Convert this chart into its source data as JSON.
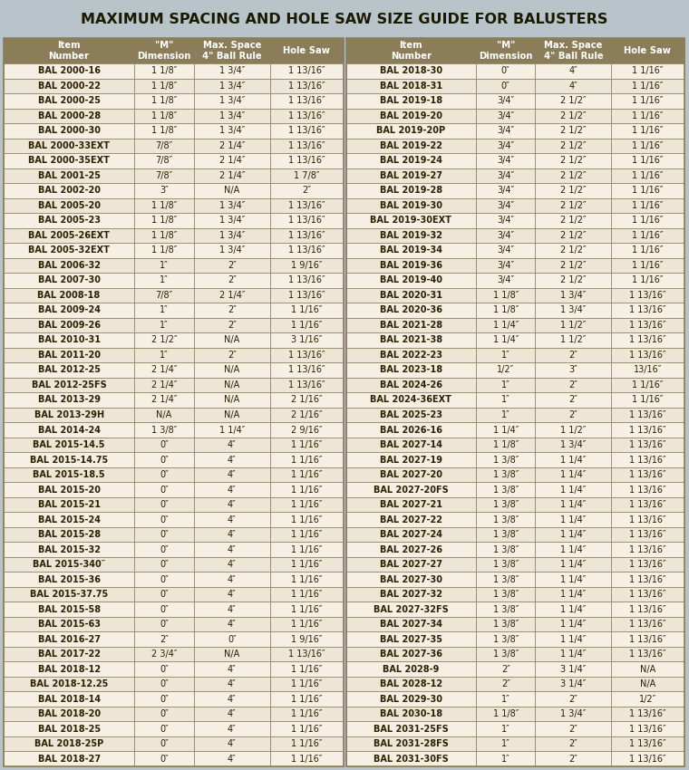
{
  "title": "MAXIMUM SPACING AND HOLE SAW SIZE GUIDE FOR BALUSTERS",
  "title_bg": "#B8C4CA",
  "header_bg": "#8B7D5A",
  "header_fg": "#FFFFFF",
  "odd_row_bg": "#F5F0E3",
  "even_row_bg": "#EDE6D6",
  "border_color": "#8B7D5A",
  "text_color": "#2C2000",
  "col_headers_left": [
    "Item\nNumber",
    "\"M\"\nDimension",
    "Max. Space\n4\" Ball Rule",
    "Hole Saw"
  ],
  "col_headers_right": [
    "Item\nNumber",
    "\"M\"\nDimension",
    "Max. Space\n4\" Ball Rule",
    "Hole Saw"
  ],
  "left_data": [
    [
      "BAL 2000-16",
      "1 1/8″",
      "1 3/4″",
      "1 13/16″"
    ],
    [
      "BAL 2000-22",
      "1 1/8″",
      "1 3/4″",
      "1 13/16″"
    ],
    [
      "BAL 2000-25",
      "1 1/8″",
      "1 3/4″",
      "1 13/16″"
    ],
    [
      "BAL 2000-28",
      "1 1/8″",
      "1 3/4″",
      "1 13/16″"
    ],
    [
      "BAL 2000-30",
      "1 1/8″",
      "1 3/4″",
      "1 13/16″"
    ],
    [
      "BAL 2000-33EXT",
      "7/8″",
      "2 1/4″",
      "1 13/16″"
    ],
    [
      "BAL 2000-35EXT",
      "7/8″",
      "2 1/4″",
      "1 13/16″"
    ],
    [
      "BAL 2001-25",
      "7/8″",
      "2 1/4″",
      "1 7/8″"
    ],
    [
      "BAL 2002-20",
      "3″",
      "N/A",
      "2″"
    ],
    [
      "BAL 2005-20",
      "1 1/8″",
      "1 3/4″",
      "1 13/16″"
    ],
    [
      "BAL 2005-23",
      "1 1/8″",
      "1 3/4″",
      "1 13/16″"
    ],
    [
      "BAL 2005-26EXT",
      "1 1/8″",
      "1 3/4″",
      "1 13/16″"
    ],
    [
      "BAL 2005-32EXT",
      "1 1/8″",
      "1 3/4″",
      "1 13/16″"
    ],
    [
      "BAL 2006-32",
      "1″",
      "2″",
      "1 9/16″"
    ],
    [
      "BAL 2007-30",
      "1″",
      "2″",
      "1 13/16″"
    ],
    [
      "BAL 2008-18",
      "7/8″",
      "2 1/4″",
      "1 13/16″"
    ],
    [
      "BAL 2009-24",
      "1″",
      "2″",
      "1 1/16″"
    ],
    [
      "BAL 2009-26",
      "1″",
      "2″",
      "1 1/16″"
    ],
    [
      "BAL 2010-31",
      "2 1/2″",
      "N/A",
      "3 1/16″"
    ],
    [
      "BAL 2011-20",
      "1″",
      "2″",
      "1 13/16″"
    ],
    [
      "BAL 2012-25",
      "2 1/4″",
      "N/A",
      "1 13/16″"
    ],
    [
      "BAL 2012-25FS",
      "2 1/4″",
      "N/A",
      "1 13/16″"
    ],
    [
      "BAL 2013-29",
      "2 1/4″",
      "N/A",
      "2 1/16″"
    ],
    [
      "BAL 2013-29H",
      "N/A",
      "N/A",
      "2 1/16″"
    ],
    [
      "BAL 2014-24",
      "1 3/8″",
      "1 1/4″",
      "2 9/16″"
    ],
    [
      "BAL 2015-14.5",
      "0″",
      "4″",
      "1 1/16″"
    ],
    [
      "BAL 2015-14.75",
      "0″",
      "4″",
      "1 1/16″"
    ],
    [
      "BAL 2015-18.5",
      "0″",
      "4″",
      "1 1/16″"
    ],
    [
      "BAL 2015-20",
      "0″",
      "4″",
      "1 1/16″"
    ],
    [
      "BAL 2015-21",
      "0″",
      "4″",
      "1 1/16″"
    ],
    [
      "BAL 2015-24",
      "0″",
      "4″",
      "1 1/16″"
    ],
    [
      "BAL 2015-28",
      "0″",
      "4″",
      "1 1/16″"
    ],
    [
      "BAL 2015-32",
      "0″",
      "4″",
      "1 1/16″"
    ],
    [
      "BAL 2015-340″",
      "0″",
      "4″",
      "1 1/16″"
    ],
    [
      "BAL 2015-36",
      "0″",
      "4″",
      "1 1/16″"
    ],
    [
      "BAL 2015-37.75",
      "0″",
      "4″",
      "1 1/16″"
    ],
    [
      "BAL 2015-58",
      "0″",
      "4″",
      "1 1/16″"
    ],
    [
      "BAL 2015-63",
      "0″",
      "4″",
      "1 1/16″"
    ],
    [
      "BAL 2016-27",
      "2″",
      "0″",
      "1 9/16″"
    ],
    [
      "BAL 2017-22",
      "2 3/4″",
      "N/A",
      "1 13/16″"
    ],
    [
      "BAL 2018-12",
      "0″",
      "4″",
      "1 1/16″"
    ],
    [
      "BAL 2018-12.25",
      "0″",
      "4″",
      "1 1/16″"
    ],
    [
      "BAL 2018-14",
      "0″",
      "4″",
      "1 1/16″"
    ],
    [
      "BAL 2018-20",
      "0″",
      "4″",
      "1 1/16″"
    ],
    [
      "BAL 2018-25",
      "0″",
      "4″",
      "1 1/16″"
    ],
    [
      "BAL 2018-25P",
      "0″",
      "4″",
      "1 1/16″"
    ],
    [
      "BAL 2018-27",
      "0″",
      "4″",
      "1 1/16″"
    ]
  ],
  "right_data": [
    [
      "BAL 2018-30",
      "0″",
      "4″",
      "1 1/16″"
    ],
    [
      "BAL 2018-31",
      "0″",
      "4″",
      "1 1/16″"
    ],
    [
      "BAL 2019-18",
      "3/4″",
      "2 1/2″",
      "1 1/16″"
    ],
    [
      "BAL 2019-20",
      "3/4″",
      "2 1/2″",
      "1 1/16″"
    ],
    [
      "BAL 2019-20P",
      "3/4″",
      "2 1/2″",
      "1 1/16″"
    ],
    [
      "BAL 2019-22",
      "3/4″",
      "2 1/2″",
      "1 1/16″"
    ],
    [
      "BAL 2019-24",
      "3/4″",
      "2 1/2″",
      "1 1/16″"
    ],
    [
      "BAL 2019-27",
      "3/4″",
      "2 1/2″",
      "1 1/16″"
    ],
    [
      "BAL 2019-28",
      "3/4″",
      "2 1/2″",
      "1 1/16″"
    ],
    [
      "BAL 2019-30",
      "3/4″",
      "2 1/2″",
      "1 1/16″"
    ],
    [
      "BAL 2019-30EXT",
      "3/4″",
      "2 1/2″",
      "1 1/16″"
    ],
    [
      "BAL 2019-32",
      "3/4″",
      "2 1/2″",
      "1 1/16″"
    ],
    [
      "BAL 2019-34",
      "3/4″",
      "2 1/2″",
      "1 1/16″"
    ],
    [
      "BAL 2019-36",
      "3/4″",
      "2 1/2″",
      "1 1/16″"
    ],
    [
      "BAL 2019-40",
      "3/4″",
      "2 1/2″",
      "1 1/16″"
    ],
    [
      "BAL 2020-31",
      "1 1/8″",
      "1 3/4″",
      "1 13/16″"
    ],
    [
      "BAL 2020-36",
      "1 1/8″",
      "1 3/4″",
      "1 13/16″"
    ],
    [
      "BAL 2021-28",
      "1 1/4″",
      "1 1/2″",
      "1 13/16″"
    ],
    [
      "BAL 2021-38",
      "1 1/4″",
      "1 1/2″",
      "1 13/16″"
    ],
    [
      "BAL 2022-23",
      "1″",
      "2″",
      "1 13/16″"
    ],
    [
      "BAL 2023-18",
      "1/2″",
      "3″",
      "13/16″"
    ],
    [
      "BAL 2024-26",
      "1″",
      "2″",
      "1 1/16″"
    ],
    [
      "BAL 2024-36EXT",
      "1″",
      "2″",
      "1 1/16″"
    ],
    [
      "BAL 2025-23",
      "1″",
      "2″",
      "1 13/16″"
    ],
    [
      "BAL 2026-16",
      "1 1/4″",
      "1 1/2″",
      "1 13/16″"
    ],
    [
      "BAL 2027-14",
      "1 1/8″",
      "1 3/4″",
      "1 13/16″"
    ],
    [
      "BAL 2027-19",
      "1 3/8″",
      "1 1/4″",
      "1 13/16″"
    ],
    [
      "BAL 2027-20",
      "1 3/8″",
      "1 1/4″",
      "1 13/16″"
    ],
    [
      "BAL 2027-20FS",
      "1 3/8″",
      "1 1/4″",
      "1 13/16″"
    ],
    [
      "BAL 2027-21",
      "1 3/8″",
      "1 1/4″",
      "1 13/16″"
    ],
    [
      "BAL 2027-22",
      "1 3/8″",
      "1 1/4″",
      "1 13/16″"
    ],
    [
      "BAL 2027-24",
      "1 3/8″",
      "1 1/4″",
      "1 13/16″"
    ],
    [
      "BAL 2027-26",
      "1 3/8″",
      "1 1/4″",
      "1 13/16″"
    ],
    [
      "BAL 2027-27",
      "1 3/8″",
      "1 1/4″",
      "1 13/16″"
    ],
    [
      "BAL 2027-30",
      "1 3/8″",
      "1 1/4″",
      "1 13/16″"
    ],
    [
      "BAL 2027-32",
      "1 3/8″",
      "1 1/4″",
      "1 13/16″"
    ],
    [
      "BAL 2027-32FS",
      "1 3/8″",
      "1 1/4″",
      "1 13/16″"
    ],
    [
      "BAL 2027-34",
      "1 3/8″",
      "1 1/4″",
      "1 13/16″"
    ],
    [
      "BAL 2027-35",
      "1 3/8″",
      "1 1/4″",
      "1 13/16″"
    ],
    [
      "BAL 2027-36",
      "1 3/8″",
      "1 1/4″",
      "1 13/16″"
    ],
    [
      "BAL 2028-9",
      "2″",
      "3 1/4″",
      "N/A"
    ],
    [
      "BAL 2028-12",
      "2″",
      "3 1/4″",
      "N/A"
    ],
    [
      "BAL 2029-30",
      "1″",
      "2″",
      "1/2″"
    ],
    [
      "BAL 2030-18",
      "1 1/8″",
      "1 3/4″",
      "1 13/16″"
    ],
    [
      "BAL 2031-25FS",
      "1″",
      "2″",
      "1 13/16″"
    ],
    [
      "BAL 2031-28FS",
      "1″",
      "2″",
      "1 13/16″"
    ],
    [
      "BAL 2031-30FS",
      "1″",
      "2″",
      "1 13/16″"
    ]
  ]
}
